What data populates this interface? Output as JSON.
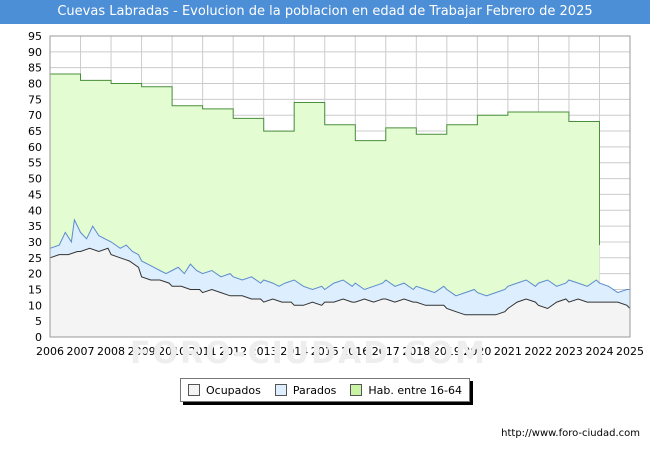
{
  "title": "Cuevas Labradas - Evolucion de la poblacion en edad de Trabajar Febrero de 2025",
  "source": "http://www.foro-ciudad.com",
  "watermark": "FORO-CIUDAD.COM",
  "colors": {
    "header_bg": "#4d8fd6",
    "hab_fill": "#e4fcd2",
    "hab_line": "#4a8f3c",
    "parados_fill": "#ddeeff",
    "parados_line": "#5a8ccc",
    "ocupados_fill": "#f4f4f4",
    "ocupados_line": "#333333",
    "grid": "#cccccc"
  },
  "chart_data": {
    "type": "area",
    "xlim": [
      2006,
      2025
    ],
    "ylim": [
      0,
      95
    ],
    "x_ticks": [
      2006,
      2007,
      2008,
      2009,
      2010,
      2011,
      2012,
      2013,
      2014,
      2015,
      2016,
      2017,
      2018,
      2019,
      2020,
      2021,
      2022,
      2023,
      2024,
      2025
    ],
    "y_ticks": [
      0,
      5,
      10,
      15,
      20,
      25,
      30,
      35,
      40,
      45,
      50,
      55,
      60,
      65,
      70,
      75,
      80,
      85,
      90,
      95
    ],
    "grid": true,
    "legend": "bottom-center",
    "series": [
      {
        "name": "Hab. entre 16-64",
        "x": [
          2006,
          2007,
          2007,
          2008,
          2008,
          2009,
          2009,
          2010,
          2010,
          2011,
          2011,
          2012,
          2012,
          2013,
          2013,
          2014,
          2014,
          2015,
          2015,
          2016,
          2016,
          2017,
          2017,
          2018,
          2018,
          2019,
          2019,
          2020,
          2020,
          2021,
          2021,
          2022,
          2022,
          2023,
          2023,
          2024,
          2024
        ],
        "values": [
          83,
          83,
          81,
          81,
          80,
          80,
          79,
          79,
          73,
          73,
          72,
          72,
          69,
          69,
          65,
          65,
          74,
          74,
          67,
          67,
          62,
          62,
          66,
          66,
          64,
          64,
          67,
          67,
          70,
          70,
          71,
          71,
          71,
          71,
          68,
          68,
          29
        ]
      },
      {
        "name": "Parados",
        "x": [
          2006,
          2006.3,
          2006.5,
          2006.7,
          2006.8,
          2007,
          2007.2,
          2007.4,
          2007.6,
          2007.8,
          2008,
          2008.3,
          2008.5,
          2008.7,
          2008.9,
          2009,
          2009.2,
          2009.4,
          2009.6,
          2009.8,
          2010,
          2010.2,
          2010.4,
          2010.6,
          2010.8,
          2011,
          2011.3,
          2011.6,
          2011.9,
          2012,
          2012.3,
          2012.6,
          2012.9,
          2013,
          2013.3,
          2013.5,
          2013.7,
          2014,
          2014.3,
          2014.6,
          2014.9,
          2015,
          2015.3,
          2015.6,
          2015.9,
          2016,
          2016.3,
          2016.6,
          2016.9,
          2017,
          2017.3,
          2017.6,
          2017.9,
          2018,
          2018.3,
          2018.6,
          2018.9,
          2019,
          2019.3,
          2019.6,
          2019.9,
          2020,
          2020.3,
          2020.6,
          2020.9,
          2021,
          2021.3,
          2021.6,
          2021.9,
          2022,
          2022.3,
          2022.6,
          2022.9,
          2023,
          2023.3,
          2023.6,
          2023.9,
          2024,
          2024.3,
          2024.6,
          2024.9,
          2025
        ],
        "values": [
          28,
          29,
          33,
          30,
          37,
          33,
          31,
          35,
          32,
          31,
          30,
          28,
          29,
          27,
          26,
          24,
          23,
          22,
          21,
          20,
          21,
          22,
          20,
          23,
          21,
          20,
          21,
          19,
          20,
          19,
          18,
          19,
          17,
          18,
          17,
          16,
          17,
          18,
          16,
          15,
          16,
          15,
          17,
          18,
          16,
          17,
          15,
          16,
          17,
          18,
          16,
          17,
          15,
          16,
          15,
          14,
          16,
          15,
          13,
          14,
          15,
          14,
          13,
          14,
          15,
          16,
          17,
          18,
          16,
          17,
          18,
          16,
          17,
          18,
          17,
          16,
          18,
          17,
          16,
          14,
          15,
          15
        ]
      },
      {
        "name": "Ocupados",
        "x": [
          2006,
          2006.3,
          2006.6,
          2006.9,
          2007,
          2007.3,
          2007.6,
          2007.9,
          2008,
          2008.3,
          2008.6,
          2008.9,
          2009,
          2009.3,
          2009.6,
          2009.9,
          2010,
          2010.3,
          2010.6,
          2010.9,
          2011,
          2011.3,
          2011.6,
          2011.9,
          2012,
          2012.3,
          2012.6,
          2012.9,
          2013,
          2013.3,
          2013.6,
          2013.9,
          2014,
          2014.3,
          2014.6,
          2014.9,
          2015,
          2015.3,
          2015.6,
          2015.9,
          2016,
          2016.3,
          2016.6,
          2016.9,
          2017,
          2017.3,
          2017.6,
          2017.9,
          2018,
          2018.3,
          2018.6,
          2018.9,
          2019,
          2019.3,
          2019.6,
          2019.9,
          2020,
          2020.3,
          2020.6,
          2020.9,
          2021,
          2021.3,
          2021.6,
          2021.9,
          2022,
          2022.3,
          2022.6,
          2022.9,
          2023,
          2023.3,
          2023.6,
          2023.9,
          2024,
          2024.3,
          2024.6,
          2024.9,
          2025
        ],
        "values": [
          25,
          26,
          26,
          27,
          27,
          28,
          27,
          28,
          26,
          25,
          24,
          22,
          19,
          18,
          18,
          17,
          16,
          16,
          15,
          15,
          14,
          15,
          14,
          13,
          13,
          13,
          12,
          12,
          11,
          12,
          11,
          11,
          10,
          10,
          11,
          10,
          11,
          11,
          12,
          11,
          11,
          12,
          11,
          12,
          12,
          11,
          12,
          11,
          11,
          10,
          10,
          10,
          9,
          8,
          7,
          7,
          7,
          7,
          7,
          8,
          9,
          11,
          12,
          11,
          10,
          9,
          11,
          12,
          11,
          12,
          11,
          11,
          11,
          11,
          11,
          10,
          9
        ]
      }
    ]
  },
  "legend_items": [
    {
      "label": "Ocupados",
      "color": "#f4f4f4"
    },
    {
      "label": "Parados",
      "color": "#ddeeff"
    },
    {
      "label": "Hab. entre 16-64",
      "color": "#c8f4a4"
    }
  ]
}
